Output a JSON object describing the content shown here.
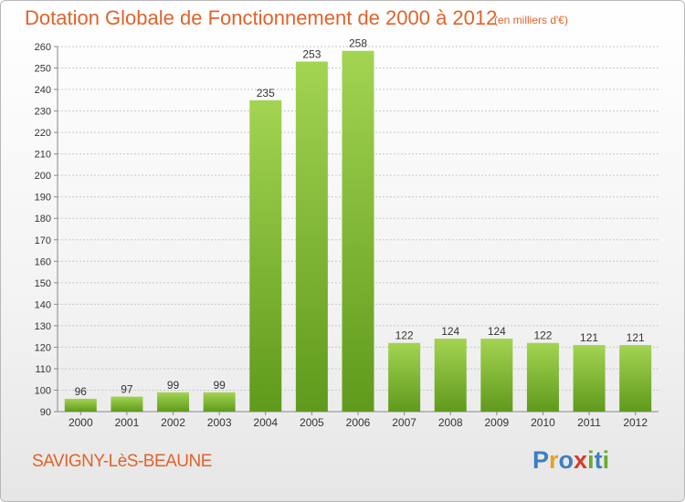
{
  "title": "Dotation Globale de Fonctionnement de 2000 à 2012",
  "subtitle": "(en milliers d'€)",
  "commune": "SAVIGNY-LèS-BEAUNE",
  "logo": {
    "letters": [
      "P",
      "r",
      "o",
      "x",
      "i",
      "t",
      "i"
    ],
    "colors": [
      "#3b7fc4",
      "#e8a21b",
      "#3b7fc4",
      "#d93a2b",
      "#6aaa2c",
      "#3b7fc4",
      "#6aaa2c"
    ]
  },
  "colors": {
    "accent": "#e0632a",
    "bar_light": "#a3d452",
    "bar_dark": "#5f9a1c",
    "grid": "#c8c8c8"
  },
  "chart_data": {
    "type": "bar",
    "categories": [
      "2000",
      "2001",
      "2002",
      "2003",
      "2004",
      "2005",
      "2006",
      "2007",
      "2008",
      "2009",
      "2010",
      "2011",
      "2012"
    ],
    "values": [
      96,
      97,
      99,
      99,
      235,
      253,
      258,
      122,
      124,
      124,
      122,
      121,
      121
    ],
    "ylim": [
      90,
      260
    ],
    "yticks": [
      90,
      100,
      110,
      120,
      130,
      140,
      150,
      160,
      170,
      180,
      190,
      200,
      210,
      220,
      230,
      240,
      250,
      260
    ],
    "xlabel": "",
    "ylabel": "",
    "grid": true
  }
}
